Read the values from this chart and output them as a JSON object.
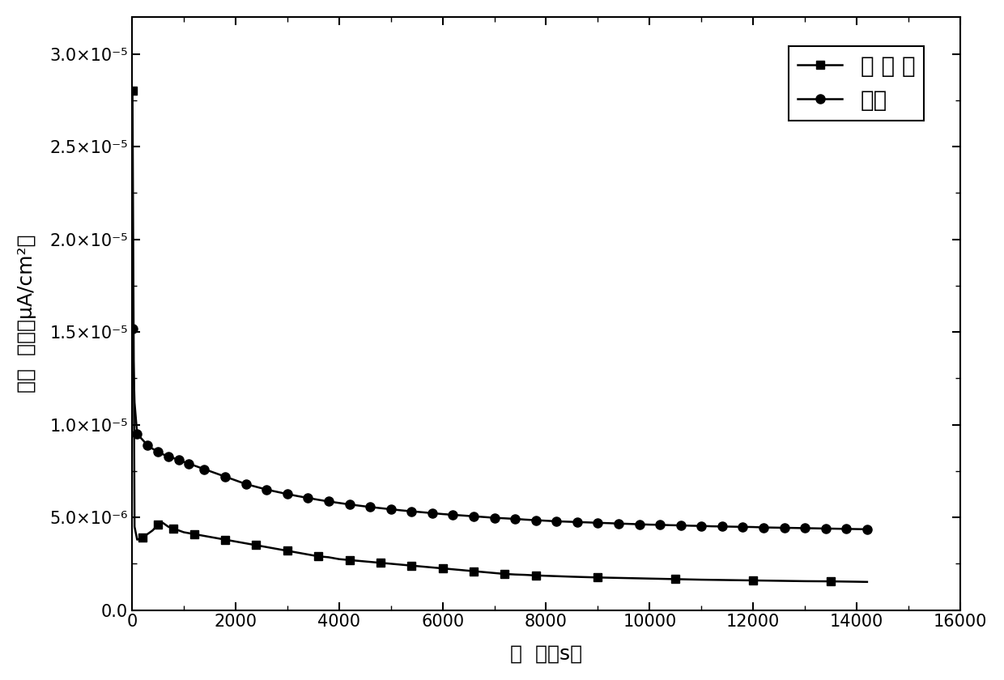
{
  "title": "",
  "xlabel": "时  间（s）",
  "ylabel": "电流  密度（μA/cm²）",
  "xlim": [
    0,
    15500
  ],
  "ylim": [
    0,
    3.2e-05
  ],
  "xticks": [
    0,
    2000,
    4000,
    6000,
    8000,
    10000,
    12000,
    14000,
    16000
  ],
  "yticks": [
    0.0,
    5e-06,
    1e-05,
    1.5e-05,
    2e-05,
    2.5e-05,
    3e-05
  ],
  "ytick_labels": [
    "0.0",
    "5.0×10⁻⁶",
    "1.0×10⁻⁵",
    "1.5×10⁻⁵",
    "2.0×10⁻⁵",
    "2.5×10⁻⁵",
    "3.0×10⁻⁵"
  ],
  "line_color": "#000000",
  "background_color": "#ffffff",
  "series1_name": "本 发 明",
  "series2_name": "基底",
  "series1_x": [
    10,
    50,
    100,
    200,
    300,
    400,
    500,
    600,
    700,
    800,
    900,
    1000,
    1200,
    1400,
    1600,
    1800,
    2000,
    2200,
    2400,
    2600,
    2800,
    3000,
    3200,
    3400,
    3600,
    3800,
    4000,
    4200,
    4400,
    4600,
    4800,
    5000,
    5200,
    5400,
    5600,
    5800,
    6000,
    6200,
    6400,
    6600,
    6800,
    7000,
    7200,
    7400,
    7600,
    7800,
    8000,
    8500,
    9000,
    9500,
    10000,
    10500,
    11000,
    11500,
    12000,
    12500,
    13000,
    13500,
    14000,
    14200
  ],
  "series1_y": [
    2.8e-05,
    4.5e-06,
    3.8e-06,
    3.9e-06,
    4.1e-06,
    4.3e-06,
    4.6e-06,
    4.7e-06,
    4.5e-06,
    4.4e-06,
    4.3e-06,
    4.2e-06,
    4.1e-06,
    4e-06,
    3.9e-06,
    3.8e-06,
    3.7e-06,
    3.6e-06,
    3.5e-06,
    3.4e-06,
    3.3e-06,
    3.2e-06,
    3.1e-06,
    3e-06,
    2.9e-06,
    2.85e-06,
    2.75e-06,
    2.7e-06,
    2.65e-06,
    2.6e-06,
    2.55e-06,
    2.5e-06,
    2.45e-06,
    2.4e-06,
    2.35e-06,
    2.3e-06,
    2.25e-06,
    2.2e-06,
    2.15e-06,
    2.1e-06,
    2.05e-06,
    2e-06,
    1.95e-06,
    1.92e-06,
    1.9e-06,
    1.87e-06,
    1.85e-06,
    1.8e-06,
    1.76e-06,
    1.73e-06,
    1.7e-06,
    1.67e-06,
    1.64e-06,
    1.62e-06,
    1.6e-06,
    1.58e-06,
    1.56e-06,
    1.55e-06,
    1.53e-06,
    1.52e-06
  ],
  "series2_x": [
    10,
    50,
    100,
    200,
    300,
    400,
    500,
    600,
    700,
    800,
    900,
    1000,
    1100,
    1200,
    1400,
    1600,
    1800,
    2000,
    2200,
    2400,
    2600,
    2800,
    3000,
    3200,
    3400,
    3600,
    3800,
    4000,
    4200,
    4400,
    4600,
    4800,
    5000,
    5200,
    5400,
    5600,
    5800,
    6000,
    6200,
    6400,
    6600,
    6800,
    7000,
    7200,
    7400,
    7600,
    7800,
    8000,
    8200,
    8400,
    8600,
    8800,
    9000,
    9200,
    9400,
    9600,
    9800,
    10000,
    10200,
    10400,
    10600,
    10800,
    11000,
    11200,
    11400,
    11600,
    11800,
    12000,
    12200,
    12400,
    12600,
    12800,
    13000,
    13200,
    13400,
    13600,
    13800,
    14000,
    14200
  ],
  "series2_y": [
    1.52e-05,
    1.12e-05,
    9.5e-06,
    9.2e-06,
    8.9e-06,
    8.7e-06,
    8.55e-06,
    8.4e-06,
    8.3e-06,
    8.2e-06,
    8.1e-06,
    8e-06,
    7.9e-06,
    7.8e-06,
    7.6e-06,
    7.4e-06,
    7.2e-06,
    7e-06,
    6.8e-06,
    6.65e-06,
    6.5e-06,
    6.38e-06,
    6.26e-06,
    6.15e-06,
    6.05e-06,
    5.95e-06,
    5.86e-06,
    5.78e-06,
    5.7e-06,
    5.63e-06,
    5.56e-06,
    5.5e-06,
    5.44e-06,
    5.38e-06,
    5.33e-06,
    5.28e-06,
    5.23e-06,
    5.18e-06,
    5.14e-06,
    5.1e-06,
    5.06e-06,
    5.02e-06,
    4.98e-06,
    4.95e-06,
    4.92e-06,
    4.88e-06,
    4.85e-06,
    4.82e-06,
    4.79e-06,
    4.77e-06,
    4.75e-06,
    4.73e-06,
    4.71e-06,
    4.69e-06,
    4.67e-06,
    4.65e-06,
    4.63e-06,
    4.61e-06,
    4.6e-06,
    4.58e-06,
    4.57e-06,
    4.55e-06,
    4.54e-06,
    4.52e-06,
    4.51e-06,
    4.5e-06,
    4.49e-06,
    4.48e-06,
    4.46e-06,
    4.45e-06,
    4.44e-06,
    4.43e-06,
    4.42e-06,
    4.41e-06,
    4.4e-06,
    4.39e-06,
    4.38e-06,
    4.37e-06,
    4.36e-06
  ]
}
